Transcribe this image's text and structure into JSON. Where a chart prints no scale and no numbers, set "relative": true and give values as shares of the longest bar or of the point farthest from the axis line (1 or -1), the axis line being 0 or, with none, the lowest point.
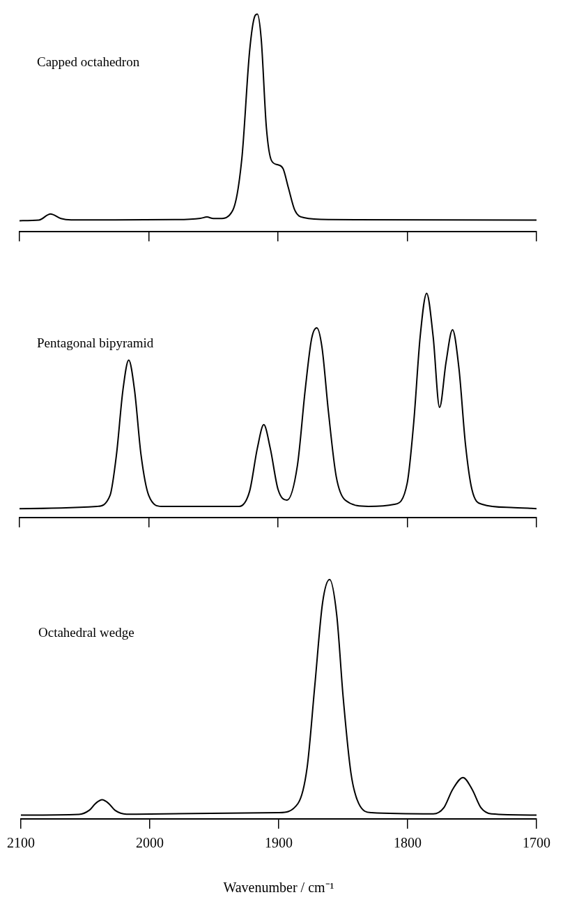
{
  "chart_data": [
    {
      "type": "line",
      "relative": true,
      "legend": false,
      "grid": false,
      "marker": "none",
      "line_style": "solid",
      "tick_labels": false,
      "xlim": [
        2100,
        1700
      ],
      "xticks": [
        2100,
        2000,
        1900,
        1800,
        1700
      ],
      "series": [
        {
          "name": "Capped octahedron",
          "color": "#000000",
          "x": [
            2100,
            2085,
            2076,
            2068,
            2060,
            1980,
            1960,
            1955,
            1950,
            1945,
            1935,
            1928,
            1922,
            1918,
            1916,
            1913,
            1909,
            1905,
            1900,
            1896,
            1892,
            1887,
            1880,
            1860,
            1700
          ],
          "values": [
            0.05,
            0.053,
            0.081,
            0.06,
            0.054,
            0.055,
            0.061,
            0.067,
            0.06,
            0.06,
            0.098,
            0.335,
            0.829,
            0.99,
            1,
            0.886,
            0.478,
            0.326,
            0.307,
            0.288,
            0.202,
            0.098,
            0.064,
            0.055,
            0.053
          ]
        }
      ]
    },
    {
      "type": "line",
      "relative": true,
      "legend": false,
      "grid": false,
      "marker": "none",
      "line_style": "solid",
      "tick_labels": false,
      "xlim": [
        2100,
        1700
      ],
      "xticks": [
        2100,
        2000,
        1900,
        1800,
        1700
      ],
      "series": [
        {
          "name": "Pentagonal bipyramid",
          "color": "#000000",
          "x": [
            2100,
            2040,
            2030,
            2025,
            2020,
            2015.5,
            2011,
            2006,
            2000,
            1990,
            1930,
            1922,
            1916,
            1911,
            1906,
            1900,
            1893,
            1885,
            1879,
            1874,
            1870,
            1866,
            1861,
            1855,
            1848,
            1830,
            1810,
            1800,
            1795,
            1790,
            1785,
            1780,
            1775,
            1770,
            1765,
            1760,
            1755,
            1750,
            1742,
            1720,
            1700
          ],
          "values": [
            0.04,
            0.05,
            0.098,
            0.28,
            0.568,
            0.702,
            0.568,
            0.28,
            0.098,
            0.05,
            0.05,
            0.117,
            0.309,
            0.414,
            0.309,
            0.126,
            0.078,
            0.232,
            0.568,
            0.798,
            0.846,
            0.76,
            0.472,
            0.184,
            0.078,
            0.05,
            0.059,
            0.155,
            0.424,
            0.808,
            1,
            0.808,
            0.491,
            0.693,
            0.837,
            0.664,
            0.328,
            0.126,
            0.059,
            0.045,
            0.04
          ]
        }
      ]
    },
    {
      "type": "line",
      "relative": true,
      "legend": false,
      "grid": false,
      "marker": "none",
      "line_style": "solid",
      "tick_labels": "x",
      "xlim": [
        2100,
        1700
      ],
      "xticks": [
        2100,
        2000,
        1900,
        1800,
        1700
      ],
      "xlabel": "Wavenumber / cm⁻¹",
      "series": [
        {
          "name": "Octahedral wedge",
          "color": "#000000",
          "x": [
            2100,
            2055,
            2047,
            2042,
            2037,
            2032,
            2027,
            2018,
            1900,
            1885,
            1878,
            1872,
            1866,
            1860.5,
            1855,
            1850,
            1844,
            1838,
            1828,
            1780,
            1772,
            1765,
            1757,
            1750,
            1743,
            1735,
            1700
          ],
          "values": [
            0.016,
            0.019,
            0.036,
            0.065,
            0.08,
            0.065,
            0.036,
            0.02,
            0.026,
            0.065,
            0.213,
            0.557,
            0.902,
            1,
            0.852,
            0.508,
            0.193,
            0.065,
            0.026,
            0.021,
            0.046,
            0.124,
            0.173,
            0.124,
            0.046,
            0.021,
            0.016
          ]
        }
      ]
    }
  ]
}
